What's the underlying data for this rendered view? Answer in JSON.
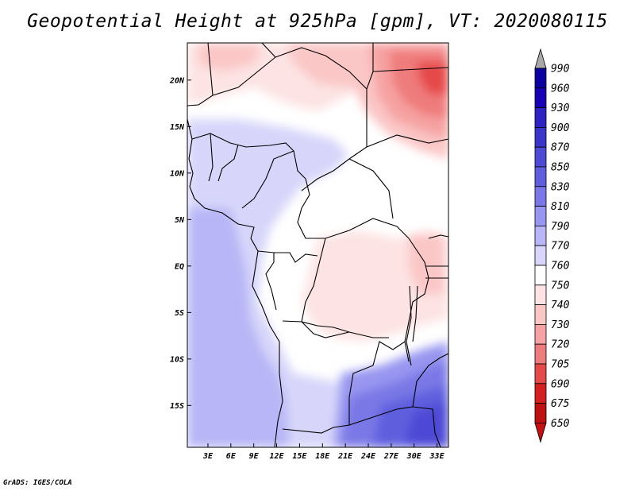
{
  "title": "Geopotential Height at 925hPa [gpm], VT: 2020080115",
  "credit": "GrADS: IGES/COLA",
  "map": {
    "region": "Central Africa",
    "lat_labels": [
      "20N",
      "15N",
      "10N",
      "5N",
      "EQ",
      "5S",
      "10S",
      "15S"
    ],
    "lon_labels": [
      "3E",
      "6E",
      "9E",
      "12E",
      "15E",
      "18E",
      "21E",
      "24E",
      "27E",
      "30E",
      "33E"
    ],
    "lat_range": [
      -19.5,
      24
    ],
    "lon_range": [
      0.3,
      34.5
    ]
  },
  "colorbar": {
    "levels": [
      990,
      960,
      930,
      900,
      870,
      850,
      830,
      810,
      790,
      770,
      760,
      750,
      740,
      730,
      720,
      705,
      690,
      675,
      650
    ],
    "colors": [
      "#0a00a0",
      "#1800b4",
      "#2d22c4",
      "#3a35c9",
      "#4d4ad6",
      "#5f5ede",
      "#7a78e6",
      "#9896f0",
      "#b8b6f6",
      "#d7d6fa",
      "#ffffff",
      "#fde3e3",
      "#fbc6c6",
      "#f6a2a2",
      "#ef7c7c",
      "#e54a4a",
      "#d42020",
      "#be1212",
      "#a80c0c"
    ],
    "top_arrow_color": "#a8a8a8",
    "bottom_arrow_color": "#c41010"
  }
}
